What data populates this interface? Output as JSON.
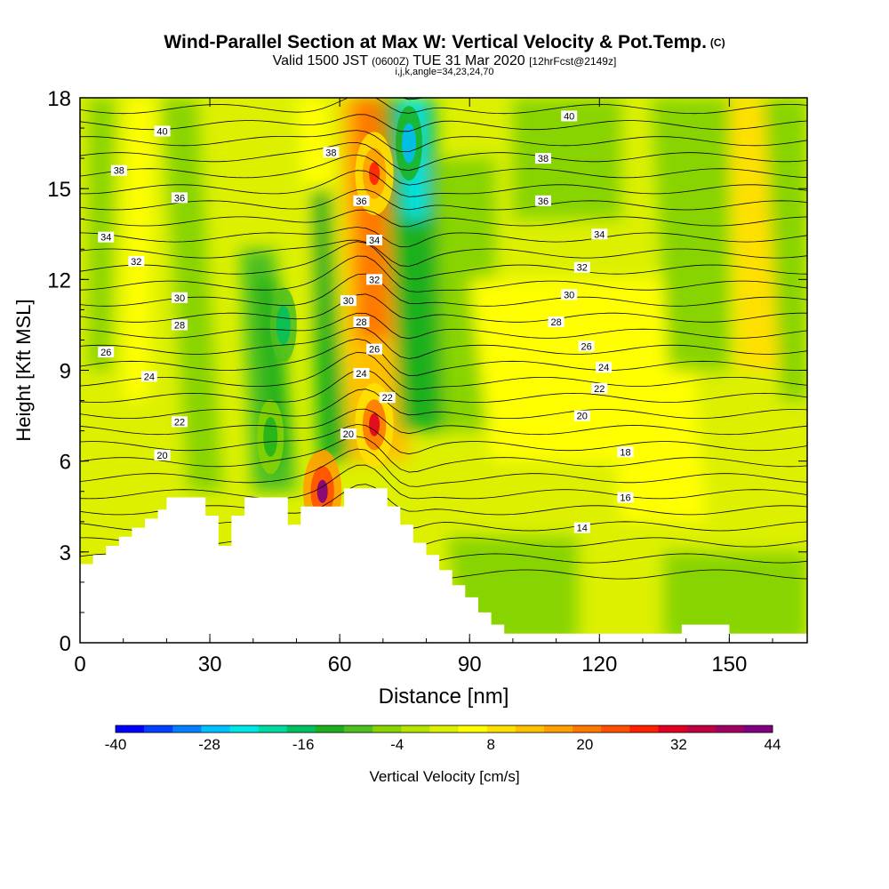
{
  "header": {
    "title": "Wind-Parallel Section at Max W: Vertical Velocity & Pot.Temp.",
    "title_mark": "(C)",
    "valid_prefix": "Valid 1500 JST",
    "valid_utc": "(0600Z)",
    "valid_date": "TUE 31 Mar 2020",
    "forecast": "[12hrFcst@2149z]",
    "indices": "i,j,k,angle=34,23,24,70"
  },
  "chart_data": {
    "type": "heatmap",
    "xlabel": "Distance [nm]",
    "ylabel": "Height [Kft MSL]",
    "xlim": [
      0,
      168
    ],
    "ylim": [
      0,
      18
    ],
    "x_ticks": [
      0,
      30,
      60,
      90,
      120,
      150
    ],
    "y_ticks": [
      0,
      3,
      6,
      9,
      12,
      15,
      18
    ],
    "colorbar": {
      "title": "Vertical Velocity [cm/s]",
      "min": -40,
      "max": 44,
      "step": 4,
      "tick_labels": [
        -40,
        -28,
        -16,
        -4,
        8,
        20,
        32,
        44
      ],
      "colors": [
        "#0000ff",
        "#0040ff",
        "#0080ff",
        "#00c0ff",
        "#00e6e6",
        "#00d9a0",
        "#00c060",
        "#1cb01c",
        "#4cc020",
        "#88d400",
        "#b4e400",
        "#dcf000",
        "#ffff00",
        "#ffe000",
        "#ffc000",
        "#ffa000",
        "#ff7800",
        "#ff5000",
        "#ff2000",
        "#e00020",
        "#c00040",
        "#a00060",
        "#800080"
      ]
    },
    "theta_contours": [
      {
        "value": 14,
        "labels": [
          [
            116,
            3.8
          ]
        ]
      },
      {
        "value": 16,
        "labels": [
          [
            126,
            4.8
          ]
        ]
      },
      {
        "value": 18,
        "labels": [
          [
            126,
            6.3
          ]
        ]
      },
      {
        "value": 20,
        "labels": [
          [
            19,
            6.2
          ],
          [
            62,
            6.9
          ],
          [
            116,
            7.5
          ]
        ]
      },
      {
        "value": 22,
        "labels": [
          [
            23,
            7.3
          ],
          [
            71,
            8.1
          ],
          [
            120,
            8.4
          ]
        ]
      },
      {
        "value": 24,
        "labels": [
          [
            16,
            8.8
          ],
          [
            65,
            8.9
          ],
          [
            121,
            9.1
          ]
        ]
      },
      {
        "value": 26,
        "labels": [
          [
            6,
            9.6
          ],
          [
            68,
            9.7
          ],
          [
            117,
            9.8
          ]
        ]
      },
      {
        "value": 28,
        "labels": [
          [
            23,
            10.5
          ],
          [
            65,
            10.6
          ],
          [
            110,
            10.6
          ]
        ]
      },
      {
        "value": 30,
        "labels": [
          [
            23,
            11.4
          ],
          [
            62,
            11.3
          ],
          [
            113,
            11.5
          ]
        ]
      },
      {
        "value": 32,
        "labels": [
          [
            13,
            12.6
          ],
          [
            68,
            12.0
          ],
          [
            116,
            12.4
          ]
        ]
      },
      {
        "value": 34,
        "labels": [
          [
            6,
            13.4
          ],
          [
            68,
            13.3
          ],
          [
            120,
            13.5
          ]
        ]
      },
      {
        "value": 36,
        "labels": [
          [
            23,
            14.7
          ],
          [
            65,
            14.6
          ],
          [
            107,
            14.6
          ]
        ]
      },
      {
        "value": 38,
        "labels": [
          [
            9,
            15.6
          ],
          [
            58,
            16.2
          ],
          [
            107,
            16.0
          ]
        ]
      },
      {
        "value": 40,
        "labels": [
          [
            19,
            16.9
          ],
          [
            113,
            17.4
          ]
        ]
      }
    ],
    "terrain_profile": [
      [
        0,
        2.6
      ],
      [
        3,
        2.6
      ],
      [
        3,
        2.9
      ],
      [
        6,
        2.9
      ],
      [
        6,
        3.2
      ],
      [
        9,
        3.2
      ],
      [
        9,
        3.5
      ],
      [
        12,
        3.5
      ],
      [
        12,
        3.8
      ],
      [
        15,
        3.8
      ],
      [
        15,
        4.1
      ],
      [
        18,
        4.1
      ],
      [
        18,
        4.4
      ],
      [
        20,
        4.4
      ],
      [
        20,
        4.8
      ],
      [
        29,
        4.8
      ],
      [
        29,
        4.2
      ],
      [
        32,
        4.2
      ],
      [
        32,
        3.2
      ],
      [
        35,
        3.2
      ],
      [
        35,
        4.2
      ],
      [
        38,
        4.2
      ],
      [
        38,
        4.8
      ],
      [
        48,
        4.8
      ],
      [
        48,
        3.9
      ],
      [
        51,
        3.9
      ],
      [
        51,
        4.5
      ],
      [
        54,
        4.5
      ],
      [
        54,
        4.5
      ],
      [
        61,
        4.5
      ],
      [
        61,
        5.1
      ],
      [
        71,
        5.1
      ],
      [
        71,
        4.5
      ],
      [
        74,
        4.5
      ],
      [
        74,
        3.9
      ],
      [
        77,
        3.9
      ],
      [
        77,
        3.3
      ],
      [
        80,
        3.3
      ],
      [
        80,
        2.9
      ],
      [
        83,
        2.9
      ],
      [
        83,
        2.4
      ],
      [
        86,
        2.4
      ],
      [
        86,
        1.9
      ],
      [
        89,
        1.9
      ],
      [
        89,
        1.5
      ],
      [
        92,
        1.5
      ],
      [
        92,
        1.0
      ],
      [
        95,
        1.0
      ],
      [
        95,
        0.6
      ],
      [
        98,
        0.6
      ],
      [
        98,
        0.3
      ],
      [
        139,
        0.3
      ],
      [
        139,
        0.6
      ],
      [
        150,
        0.6
      ],
      [
        150,
        0.3
      ],
      [
        168,
        0.3
      ]
    ],
    "updraft_cores": [
      {
        "x": 56,
        "y": 5.0,
        "value": 44
      },
      {
        "x": 68,
        "y": 7.2,
        "value": 32
      },
      {
        "x": 68,
        "y": 15.5,
        "value": 28
      }
    ],
    "downdraft_cores": [
      {
        "x": 76,
        "y": 16.5,
        "value": -28
      },
      {
        "x": 47,
        "y": 10.5,
        "value": -16
      },
      {
        "x": 44,
        "y": 6.8,
        "value": -12
      }
    ]
  }
}
